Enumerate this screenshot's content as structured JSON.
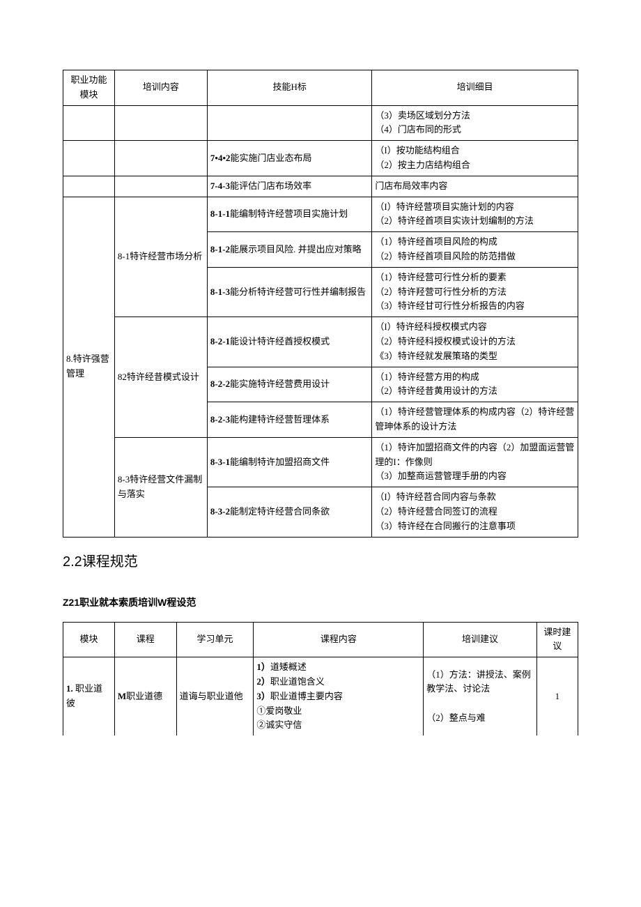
{
  "table1": {
    "columns": [
      "职业功能模块",
      "培训内容",
      "技能H标",
      "培训细目"
    ],
    "col_widths": [
      "10%",
      "18%",
      "32%",
      "40%"
    ],
    "rows": [
      {
        "module": "",
        "content": "",
        "skill": "",
        "details": [
          "（3）卖场区域划分方法",
          "（4）门店布同的形式"
        ],
        "open_top": true
      },
      {
        "module": "",
        "content": "",
        "skill": "7•4•2能实施门店业态布局",
        "details": [
          "（I）按功能结构组合",
          "（2）按主力店结构组合"
        ]
      },
      {
        "module": "",
        "content": "",
        "skill": "7-4-3能评估门店布场效率",
        "details": [
          "门店布局效率内容"
        ]
      },
      {
        "module_rowspan": 8,
        "module": "8.特许强营管理",
        "content_rowspan": 3,
        "content": "8-1特许经营市场分析",
        "skill": "8-1-1能编制特许经营项目实施计划",
        "details": [
          "（I）特许经营项目实施计划的内容",
          "（2）特许经首项目实诙计划编制的方法"
        ]
      },
      {
        "skill": "8-1-2能展示项目风险. 并提出应对策略",
        "details": [
          "（1）特许经首项目风险的构成",
          "（2）特许经首项目风险的防范措做"
        ]
      },
      {
        "skill": "8-1-3能分析特许经营可行性并编制报告",
        "details": [
          "（1）特许经营可行性分析的要素",
          "（2）特许羟营可行性分析的方法",
          "（3）特许经甘可行性分析报告的内容"
        ]
      },
      {
        "content_rowspan": 3,
        "content": "82特许经昔模式设计",
        "skill": "8-2-1能设计特许经酋授权模式",
        "details": [
          "（I）特许经科授权模式内容",
          "（2）特许经科授权模式设计的方法",
          "《3）特许经就发展策珞的类型"
        ]
      },
      {
        "skill": "8-2-2能实施特许经营费用设计",
        "details": [
          "（1）特许经营方用的构成",
          "（2）特许经昔黄用设计的方法"
        ]
      },
      {
        "skill": "8-2-3能构建特许经营哲理体系",
        "details": [
          "（1）特许经营管理体系的构成内容（2）特许经营管珅体系的设计方法"
        ]
      },
      {
        "content_rowspan": 2,
        "content": "8-3特许经营文件漏制与落实",
        "skill": "8-3-1能编制特许加盟招商文件",
        "details": [
          "（1）特许加盟招商文件的内容（2）加盟面运营管理的I：作像则",
          "（3）加整商运营管理手册的内容"
        ]
      },
      {
        "skill": "8-3-2能制定特许经营合同条欲",
        "details": [
          "（I）特许经苕合同内容与条款",
          "（2）特许经营合同签订的流程",
          "（3）特许经在合同搬行的注意事项"
        ]
      }
    ]
  },
  "section_heading": "2.2课程规范",
  "sub_heading": "Z21职业就本索质培训W程设范",
  "table2": {
    "columns": [
      "模块",
      "课程",
      "学习单元",
      "课程内容",
      "培训建议",
      "课时建议"
    ],
    "col_widths": [
      "10%",
      "12%",
      "15%",
      "33%",
      "22%",
      "8%"
    ],
    "rows": [
      {
        "module": "1. 职业道彼",
        "course": "M职业道德",
        "unit": "道诲与职业道他",
        "content": [
          "1）道矮概述",
          "2）职业道饱含义",
          "3）职业道博主要内容",
          "①爱岗敬业",
          "②诚实守信"
        ],
        "advice": [
          "（1）方法：讲授法、案例教学法、讨论法",
          "",
          "（2）整点与难"
        ],
        "hours": "1",
        "open_bottom": true
      }
    ]
  }
}
